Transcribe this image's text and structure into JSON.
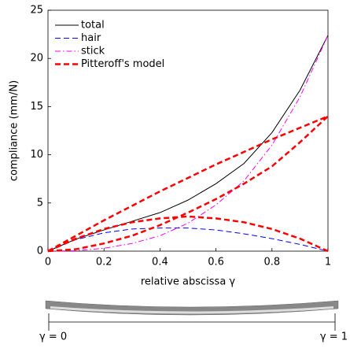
{
  "chart_data": {
    "type": "line",
    "xlabel": "relative abscissa γ",
    "ylabel": "compliance (mm/N)",
    "x": [
      0,
      0.1,
      0.2,
      0.3,
      0.4,
      0.5,
      0.6,
      0.7,
      0.8,
      0.9,
      1
    ],
    "series": [
      {
        "name": "total",
        "color": "#000000",
        "linestyle": "solid",
        "linewidth": 1,
        "values": [
          0,
          1.25,
          2.2,
          3.1,
          4.0,
          5.3,
          7.0,
          9.1,
          12.3,
          16.7,
          22.4
        ]
      },
      {
        "name": "hair",
        "color": "#0000ff",
        "linestyle": "dashed",
        "linewidth": 1,
        "values": [
          0,
          1.2,
          1.9,
          2.3,
          2.4,
          2.4,
          2.2,
          1.8,
          1.3,
          0.7,
          0
        ]
      },
      {
        "name": "stick",
        "color": "#ff00ff",
        "linestyle": "dashdot",
        "linewidth": 1,
        "values": [
          0,
          0.05,
          0.3,
          0.8,
          1.6,
          2.9,
          4.8,
          7.3,
          11,
          16,
          22.4
        ]
      },
      {
        "name": "Pitteroff's model",
        "color": "#ff0000",
        "linestyle": "dashed",
        "linewidth": 2.5,
        "curves": [
          [
            0,
            1.6,
            3.2,
            4.7,
            6.2,
            7.6,
            9.0,
            10.3,
            11.6,
            12.8,
            14
          ],
          [
            0,
            0.2,
            0.8,
            1.6,
            2.7,
            4.0,
            5.4,
            7.0,
            8.8,
            11.3,
            14
          ],
          [
            0,
            1.3,
            2.3,
            3.0,
            3.4,
            3.6,
            3.4,
            3.0,
            2.3,
            1.3,
            0
          ]
        ]
      }
    ],
    "xlim": [
      0,
      1
    ],
    "ylim": [
      0,
      25
    ],
    "xticks": [
      0,
      0.2,
      0.4,
      0.6,
      0.8,
      1
    ],
    "yticks": [
      0,
      5,
      10,
      15,
      20,
      25
    ],
    "legend": "upper left",
    "annotations": [
      "γ = 0",
      "γ = 1"
    ]
  }
}
